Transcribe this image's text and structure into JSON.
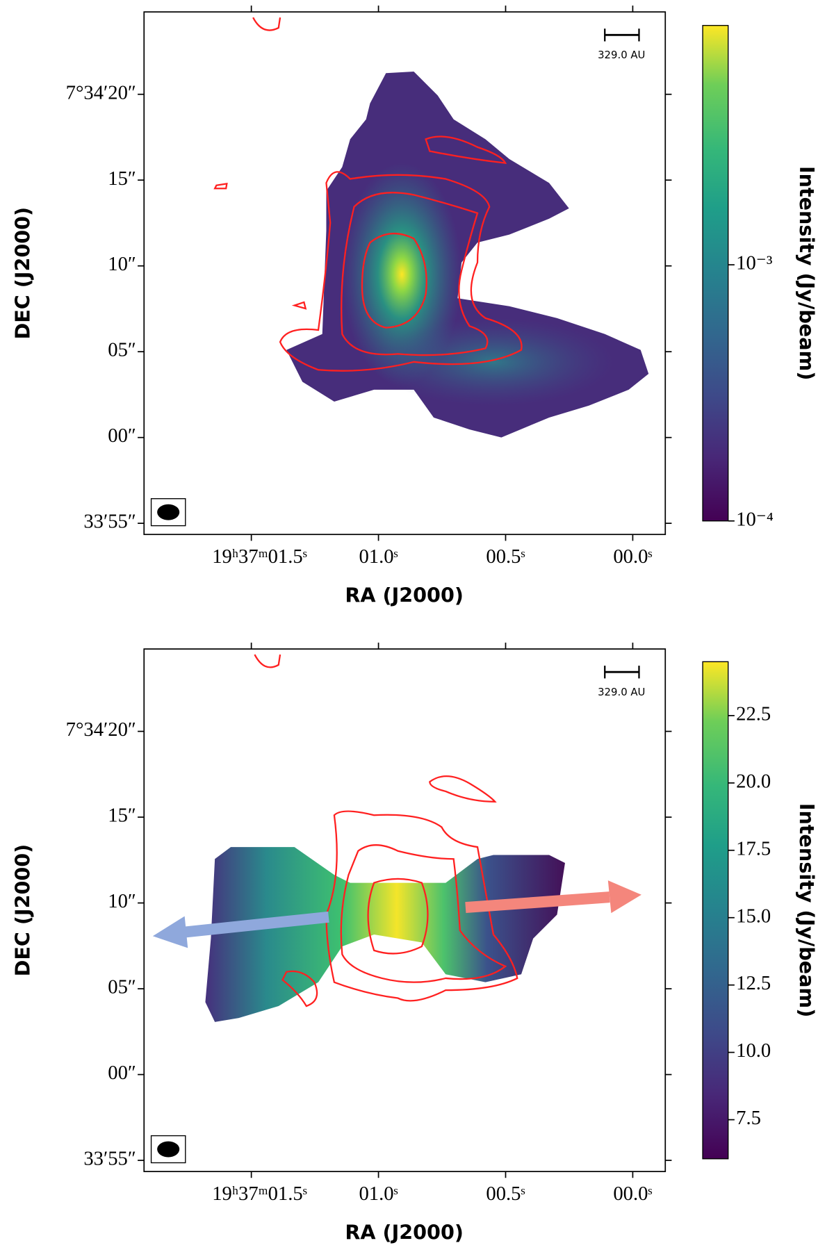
{
  "chart_data": [
    {
      "type": "image",
      "xlabel": "RA (J2000)",
      "ylabel": "DEC (J2000)",
      "colorbar_label": "Intensity (Jy/beam)",
      "scale_bar": "329.0 AU",
      "xlim": [
        1.922,
        -0.128
      ],
      "xticks": [
        {
          "value": 1.5,
          "label": "19ʰ37ᵐ01.5ˢ"
        },
        {
          "value": 1.0,
          "label": "01.0ˢ"
        },
        {
          "value": 0.5,
          "label": "00.5ˢ"
        },
        {
          "value": 0.0,
          "label": "00.0ˢ"
        }
      ],
      "ylim": [
        -5.65,
        24.8
      ],
      "yticks": [
        {
          "value": -5,
          "label": "33′55″"
        },
        {
          "value": 0,
          "label": "00″"
        },
        {
          "value": 5,
          "label": "05″"
        },
        {
          "value": 10,
          "label": "10″"
        },
        {
          "value": 15,
          "label": "15″"
        },
        {
          "value": 20,
          "label": "7°34′20″"
        }
      ],
      "clim": [
        0.0001,
        0.0086
      ],
      "color_log": true,
      "cticks": [
        {
          "value": 0.0001,
          "label": "10⁻⁴"
        },
        {
          "value": 0.001,
          "label": "10⁻³"
        }
      ]
    },
    {
      "type": "image",
      "xlabel": "RA (J2000)",
      "ylabel": "DEC (J2000)",
      "colorbar_label": "Intensity (Jy/beam)",
      "scale_bar": "329.0 AU",
      "xlim": [
        1.922,
        -0.128
      ],
      "xticks": [
        {
          "value": 1.5,
          "label": "19ʰ37ᵐ01.5ˢ"
        },
        {
          "value": 1.0,
          "label": "01.0ˢ"
        },
        {
          "value": 0.5,
          "label": "00.5ˢ"
        },
        {
          "value": 0.0,
          "label": "00.0ˢ"
        }
      ],
      "ylim": [
        -5.65,
        24.8
      ],
      "yticks": [
        {
          "value": -5,
          "label": "33′55″"
        },
        {
          "value": 0,
          "label": "00″"
        },
        {
          "value": 5,
          "label": "05″"
        },
        {
          "value": 10,
          "label": "10″"
        },
        {
          "value": 15,
          "label": "15″"
        },
        {
          "value": 20,
          "label": "7°34′20″"
        }
      ],
      "clim": [
        6.05,
        24.5
      ],
      "color_log": false,
      "cticks": [
        7.5,
        {
          "value": 10,
          "label": "10.0"
        },
        12.5,
        {
          "value": 15,
          "label": "15.0"
        },
        17.5,
        {
          "value": 20,
          "label": "20.0"
        },
        22.5
      ]
    }
  ]
}
